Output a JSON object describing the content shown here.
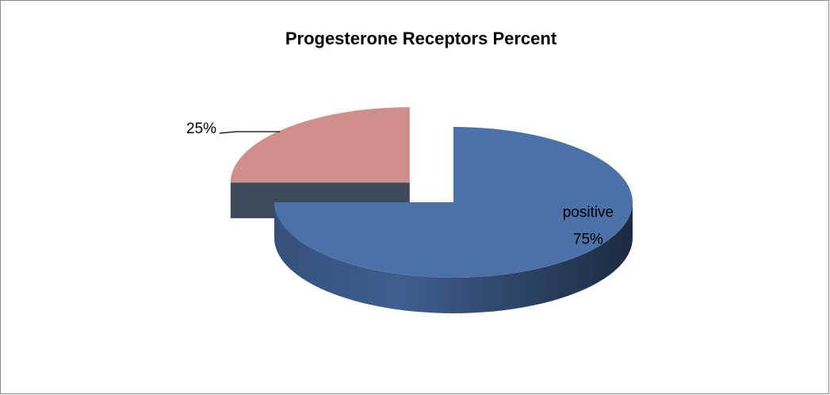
{
  "chart_data": {
    "type": "pie",
    "title": "Progesterone  Receptors Percent",
    "categories": [
      "positive",
      null
    ],
    "values": [
      75,
      25
    ],
    "value_labels": [
      "75%",
      "25%"
    ],
    "colors": [
      "#4a72a8",
      "#d08f8a"
    ],
    "exploded": [
      false,
      true
    ]
  }
}
